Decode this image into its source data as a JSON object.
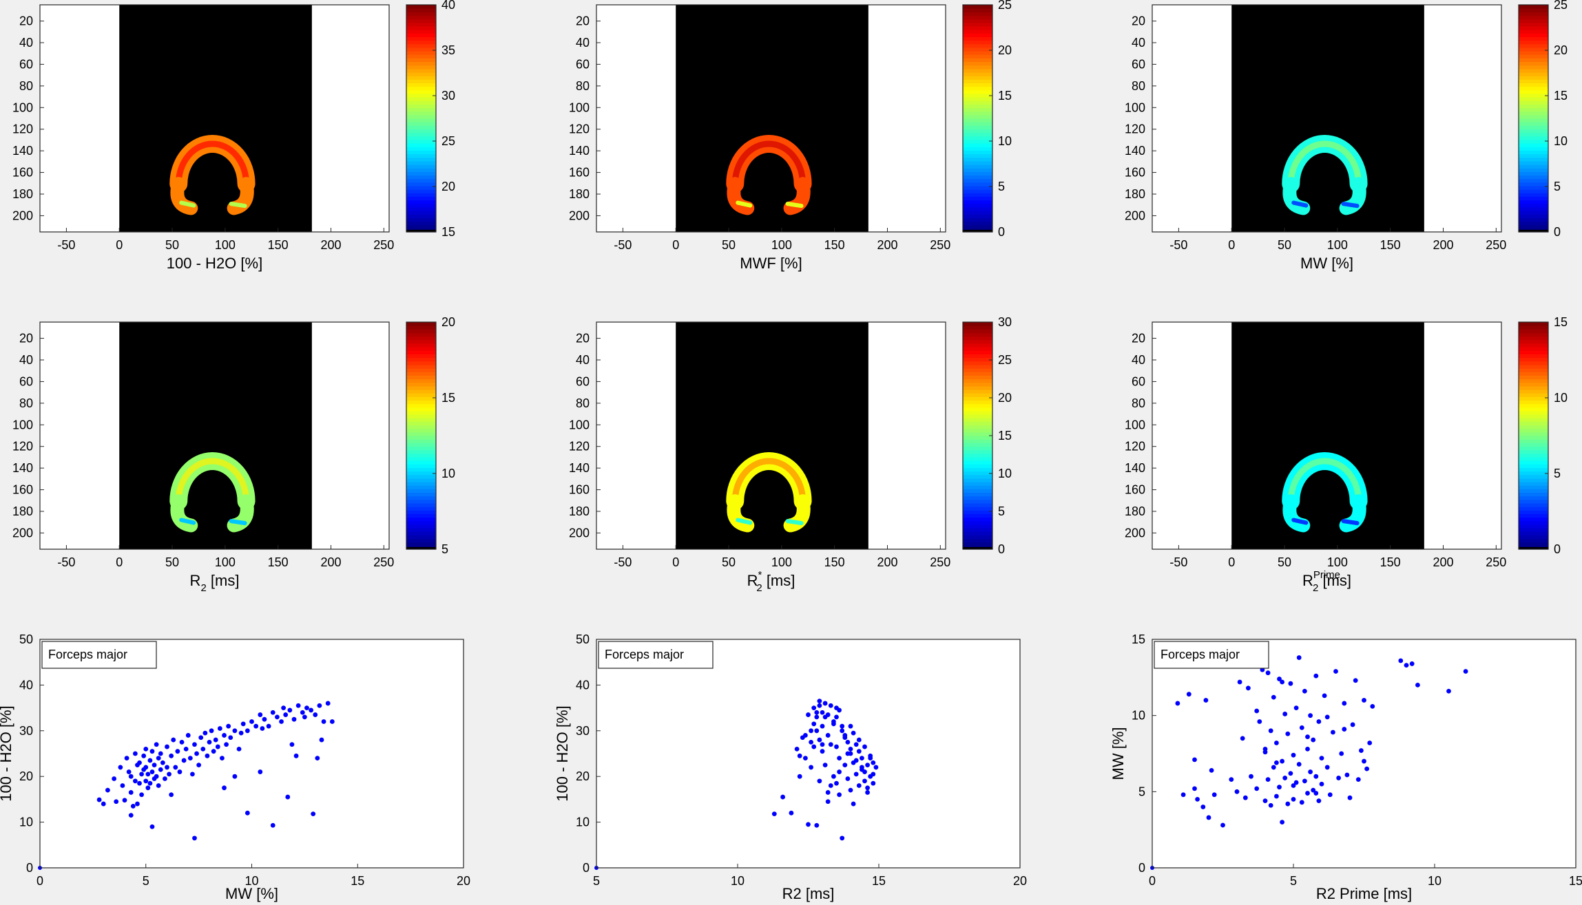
{
  "figure": {
    "background": "#f0f0f0",
    "image_panels": [
      {
        "xlabel": "100 - H2O [%]",
        "xlabel_sub": "",
        "xlabel_sup": "",
        "y_ticks": [
          "20",
          "40",
          "60",
          "80",
          "100",
          "120",
          "140",
          "160",
          "180",
          "200"
        ],
        "x_ticks": [
          "-50",
          "0",
          "50",
          "100",
          "150",
          "200",
          "250"
        ],
        "xlim": [
          -75,
          255
        ],
        "ylim": [
          5,
          215
        ],
        "image_extent_x": [
          0,
          182
        ],
        "colorbar_ticks": [
          "40",
          "35",
          "30",
          "25",
          "20",
          "15"
        ],
        "clim": [
          15,
          40
        ],
        "map_level": 0.75
      },
      {
        "xlabel": "MWF [%]",
        "xlabel_sub": "",
        "xlabel_sup": "",
        "y_ticks": [
          "20",
          "40",
          "60",
          "80",
          "100",
          "120",
          "140",
          "160",
          "180",
          "200"
        ],
        "x_ticks": [
          "-50",
          "0",
          "50",
          "100",
          "150",
          "200",
          "250"
        ],
        "xlim": [
          -75,
          255
        ],
        "ylim": [
          5,
          215
        ],
        "image_extent_x": [
          0,
          182
        ],
        "colorbar_ticks": [
          "25",
          "20",
          "15",
          "10",
          "5",
          "0"
        ],
        "clim": [
          0,
          25
        ],
        "map_level": 0.8
      },
      {
        "xlabel": "MW [%]",
        "xlabel_sub": "",
        "xlabel_sup": "",
        "y_ticks": [
          "20",
          "40",
          "60",
          "80",
          "100",
          "120",
          "140",
          "160",
          "180",
          "200"
        ],
        "x_ticks": [
          "-50",
          "0",
          "50",
          "100",
          "150",
          "200",
          "250"
        ],
        "xlim": [
          -75,
          255
        ],
        "ylim": [
          5,
          215
        ],
        "image_extent_x": [
          0,
          182
        ],
        "colorbar_ticks": [
          "25",
          "20",
          "15",
          "10",
          "5",
          "0"
        ],
        "clim": [
          0,
          25
        ],
        "map_level": 0.4
      },
      {
        "xlabel": "R",
        "xlabel_sub": "2",
        "xlabel_sup": "",
        "xlabel_tail": " [ms]",
        "y_ticks": [
          "20",
          "40",
          "60",
          "80",
          "100",
          "120",
          "140",
          "160",
          "180",
          "200"
        ],
        "x_ticks": [
          "-50",
          "0",
          "50",
          "100",
          "150",
          "200",
          "250"
        ],
        "xlim": [
          -75,
          255
        ],
        "ylim": [
          5,
          215
        ],
        "image_extent_x": [
          0,
          182
        ],
        "colorbar_ticks": [
          "20",
          "15",
          "10",
          "5"
        ],
        "clim": [
          5,
          20
        ],
        "map_level": 0.52
      },
      {
        "xlabel": "R",
        "xlabel_sub": "2",
        "xlabel_sup": "*",
        "xlabel_tail": " [ms]",
        "y_ticks": [
          "20",
          "40",
          "60",
          "80",
          "100",
          "120",
          "140",
          "160",
          "180",
          "200"
        ],
        "x_ticks": [
          "-50",
          "0",
          "50",
          "100",
          "150",
          "200",
          "250"
        ],
        "xlim": [
          -75,
          255
        ],
        "ylim": [
          5,
          215
        ],
        "image_extent_x": [
          0,
          182
        ],
        "colorbar_ticks": [
          "30",
          "25",
          "20",
          "15",
          "10",
          "5",
          "0"
        ],
        "clim": [
          0,
          30
        ],
        "map_level": 0.62
      },
      {
        "xlabel": "R",
        "xlabel_sub": "2",
        "xlabel_sup": "Prime",
        "xlabel_tail": " [ms]",
        "y_ticks": [
          "20",
          "40",
          "60",
          "80",
          "100",
          "120",
          "140",
          "160",
          "180",
          "200"
        ],
        "x_ticks": [
          "-50",
          "0",
          "50",
          "100",
          "150",
          "200",
          "250"
        ],
        "xlim": [
          -75,
          255
        ],
        "ylim": [
          5,
          215
        ],
        "image_extent_x": [
          0,
          182
        ],
        "colorbar_ticks": [
          "15",
          "10",
          "5",
          "0"
        ],
        "clim": [
          0,
          15
        ],
        "map_level": 0.38
      }
    ]
  },
  "chart_data": [
    {
      "type": "scatter",
      "legend": "Forceps major",
      "legend_placement": "top-left",
      "xlabel": "MW [%]",
      "ylabel": "100 - H2O [%]",
      "xlim": [
        0,
        20
      ],
      "ylim": [
        0,
        50
      ],
      "x_ticks": [
        "0",
        "5",
        "10",
        "15",
        "20"
      ],
      "y_ticks": [
        "0",
        "10",
        "20",
        "30",
        "40",
        "50"
      ],
      "color": "#0000ff",
      "x": [
        2.8,
        3.0,
        3.2,
        3.5,
        3.8,
        3.9,
        4.0,
        4.1,
        4.2,
        4.3,
        4.3,
        4.4,
        4.5,
        4.5,
        4.6,
        4.6,
        4.7,
        4.7,
        4.8,
        4.8,
        4.9,
        4.9,
        5.0,
        5.0,
        5.0,
        5.1,
        5.1,
        5.2,
        5.2,
        5.3,
        5.3,
        5.4,
        5.4,
        5.5,
        5.5,
        5.6,
        5.6,
        5.7,
        5.7,
        5.8,
        5.9,
        6.0,
        6.0,
        6.1,
        6.2,
        6.3,
        6.4,
        6.5,
        6.6,
        6.7,
        6.8,
        6.9,
        7.0,
        7.1,
        7.2,
        7.3,
        7.4,
        7.5,
        7.6,
        7.7,
        7.8,
        7.9,
        8.0,
        8.1,
        8.2,
        8.3,
        8.4,
        8.5,
        8.6,
        8.7,
        8.8,
        8.9,
        9.0,
        9.2,
        9.4,
        9.5,
        9.6,
        9.8,
        10.0,
        10.2,
        10.4,
        10.5,
        10.6,
        10.8,
        11.0,
        11.2,
        11.4,
        11.5,
        11.6,
        11.8,
        12.0,
        12.2,
        12.4,
        12.5,
        12.6,
        12.8,
        13.0,
        13.2,
        13.4,
        13.6,
        13.8,
        5.3,
        7.3,
        9.8,
        11.0,
        11.7,
        12.9,
        4.3,
        3.6,
        6.2,
        8.7,
        10.4,
        12.1,
        13.1,
        13.3,
        11.9,
        9.2
      ],
      "y": [
        14.9,
        14.0,
        17.0,
        19.5,
        22.0,
        18.0,
        14.8,
        24.0,
        21.0,
        16.5,
        20.0,
        13.5,
        19.0,
        25.0,
        22.5,
        14.0,
        18.5,
        23.0,
        20.5,
        16.0,
        21.5,
        24.5,
        19.0,
        22.0,
        26.0,
        17.5,
        20.5,
        23.5,
        18.5,
        21.0,
        25.5,
        19.5,
        22.5,
        27.0,
        20.0,
        24.0,
        18.0,
        21.5,
        25.0,
        23.0,
        19.5,
        22.0,
        26.5,
        20.5,
        24.5,
        28.0,
        22.0,
        25.5,
        21.0,
        27.5,
        23.5,
        26.0,
        29.0,
        24.0,
        20.5,
        27.0,
        25.0,
        22.5,
        28.5,
        26.0,
        29.5,
        24.5,
        27.5,
        30.0,
        25.5,
        28.0,
        26.5,
        30.5,
        24.0,
        29.0,
        27.0,
        31.0,
        28.5,
        30.0,
        26.0,
        29.5,
        31.5,
        30.0,
        32.0,
        31.0,
        33.5,
        30.5,
        32.5,
        31.0,
        34.0,
        33.0,
        32.0,
        35.0,
        33.5,
        34.5,
        32.5,
        35.5,
        34.0,
        33.0,
        35.0,
        34.5,
        33.5,
        35.5,
        32.0,
        36.0,
        32.0,
        9.0,
        6.5,
        12.0,
        9.3,
        15.5,
        11.8,
        11.5,
        14.5,
        16.0,
        17.5,
        21.0,
        24.5,
        24.0,
        28.0,
        27.0,
        20.0
      ]
    },
    {
      "type": "scatter",
      "legend": "Forceps major",
      "legend_placement": "top-left",
      "xlabel": "R2 [ms]",
      "ylabel": "100 - H2O [%]",
      "xlim": [
        5,
        20
      ],
      "ylim": [
        0,
        50
      ],
      "x_ticks": [
        "5",
        "10",
        "15",
        "20"
      ],
      "y_ticks": [
        "0",
        "10",
        "20",
        "30",
        "40",
        "50"
      ],
      "color": "#0000ff",
      "x": [
        11.3,
        11.6,
        11.9,
        12.1,
        12.2,
        12.3,
        12.4,
        12.5,
        12.5,
        12.6,
        12.6,
        12.7,
        12.7,
        12.8,
        12.8,
        12.9,
        12.9,
        13.0,
        13.0,
        13.0,
        13.1,
        13.1,
        13.2,
        13.2,
        13.3,
        13.3,
        13.4,
        13.4,
        13.5,
        13.5,
        13.5,
        13.6,
        13.6,
        13.7,
        13.7,
        13.8,
        13.8,
        13.9,
        13.9,
        14.0,
        14.0,
        14.0,
        14.1,
        14.1,
        14.2,
        14.2,
        14.3,
        14.3,
        14.4,
        14.4,
        14.5,
        14.5,
        14.6,
        14.6,
        14.7,
        14.7,
        14.8,
        14.8,
        13.2,
        13.6,
        14.1,
        14.5,
        12.8,
        13.9,
        14.3,
        13.4,
        14.6,
        13.1,
        12.9,
        14.2,
        13.7,
        14.8,
        13.0,
        12.7,
        13.5,
        14.4,
        12.4,
        13.8,
        12.2,
        14.0,
        13.3,
        12.6,
        13.6,
        14.7,
        12.9,
        14.9,
        13.2,
        12.8
      ],
      "y": [
        11.8,
        15.5,
        12.0,
        26.0,
        20.0,
        28.5,
        24.0,
        33.5,
        9.5,
        30.0,
        22.0,
        35.0,
        26.5,
        33.0,
        9.3,
        36.5,
        28.0,
        34.0,
        25.5,
        31.0,
        36.0,
        22.5,
        33.5,
        29.0,
        35.5,
        27.0,
        32.0,
        20.0,
        35.0,
        26.5,
        18.5,
        34.5,
        24.0,
        31.0,
        6.5,
        29.0,
        22.5,
        27.5,
        19.5,
        31.0,
        25.0,
        17.0,
        29.5,
        23.0,
        27.0,
        20.5,
        25.5,
        18.0,
        24.0,
        21.5,
        26.5,
        19.0,
        22.5,
        17.5,
        24.5,
        20.0,
        23.0,
        18.5,
        14.5,
        16.0,
        14.0,
        21.0,
        30.0,
        25.0,
        28.0,
        31.5,
        16.5,
        33.0,
        35.5,
        23.5,
        30.0,
        20.5,
        27.0,
        31.5,
        33.0,
        22.0,
        29.0,
        28.5,
        24.5,
        26.0,
        18.0,
        27.5,
        21.0,
        24.0,
        19.0,
        22.0,
        16.5,
        34.0
      ]
    },
    {
      "type": "scatter",
      "legend": "Forceps major",
      "legend_placement": "top-left",
      "xlabel": "R2 Prime [ms]",
      "ylabel": "MW [%]",
      "xlim": [
        0,
        15
      ],
      "ylim": [
        0,
        15
      ],
      "x_ticks": [
        "0",
        "5",
        "10",
        "15"
      ],
      "y_ticks": [
        "0",
        "5",
        "10",
        "15"
      ],
      "color": "#0000ff",
      "x": [
        0.9,
        1.1,
        1.3,
        1.5,
        1.6,
        1.8,
        1.9,
        2.0,
        2.1,
        2.5,
        2.8,
        3.0,
        3.1,
        3.2,
        3.3,
        3.4,
        3.5,
        3.6,
        3.7,
        3.8,
        3.9,
        4.0,
        4.0,
        4.1,
        4.1,
        4.2,
        4.2,
        4.3,
        4.3,
        4.4,
        4.4,
        4.5,
        4.5,
        4.6,
        4.6,
        4.7,
        4.7,
        4.8,
        4.8,
        4.9,
        4.9,
        5.0,
        5.0,
        5.1,
        5.1,
        5.2,
        5.2,
        5.3,
        5.3,
        5.4,
        5.4,
        5.5,
        5.5,
        5.6,
        5.6,
        5.7,
        5.7,
        5.8,
        5.8,
        5.9,
        5.9,
        6.0,
        6.0,
        6.1,
        6.2,
        6.3,
        6.4,
        6.5,
        6.6,
        6.7,
        6.8,
        6.9,
        7.0,
        7.1,
        7.2,
        7.3,
        7.4,
        7.5,
        7.6,
        7.7,
        7.8,
        8.8,
        9.0,
        9.2,
        9.4,
        10.5,
        11.1,
        3.7,
        4.0,
        2.2,
        1.5,
        5.5,
        6.2,
        4.4,
        5.0,
        6.8,
        7.5,
        5.8,
        4.6
      ],
      "y": [
        10.8,
        4.8,
        11.4,
        7.1,
        4.5,
        4.0,
        11.0,
        3.3,
        6.4,
        2.8,
        5.8,
        5.0,
        12.2,
        8.5,
        4.6,
        11.8,
        6.0,
        13.9,
        5.2,
        9.6,
        13.0,
        4.4,
        7.6,
        12.8,
        5.8,
        9.0,
        4.1,
        11.2,
        6.6,
        4.7,
        8.2,
        12.4,
        5.3,
        7.0,
        3.0,
        10.1,
        5.9,
        4.2,
        8.8,
        6.2,
        12.1,
        4.5,
        7.4,
        10.5,
        5.6,
        13.8,
        6.8,
        4.3,
        9.2,
        5.7,
        11.6,
        7.8,
        4.9,
        6.3,
        10.0,
        5.1,
        8.4,
        12.6,
        6.0,
        4.4,
        9.6,
        7.2,
        5.5,
        11.3,
        6.6,
        4.8,
        8.9,
        12.9,
        5.9,
        7.5,
        10.8,
        6.1,
        4.6,
        9.4,
        12.3,
        5.8,
        7.7,
        11.0,
        6.5,
        8.2,
        10.6,
        13.6,
        13.3,
        13.4,
        12.0,
        11.6,
        12.9,
        10.3,
        7.8,
        4.8,
        5.2,
        8.6,
        9.9,
        6.9,
        5.4,
        9.1,
        7.0,
        4.9,
        12.2
      ]
    }
  ]
}
